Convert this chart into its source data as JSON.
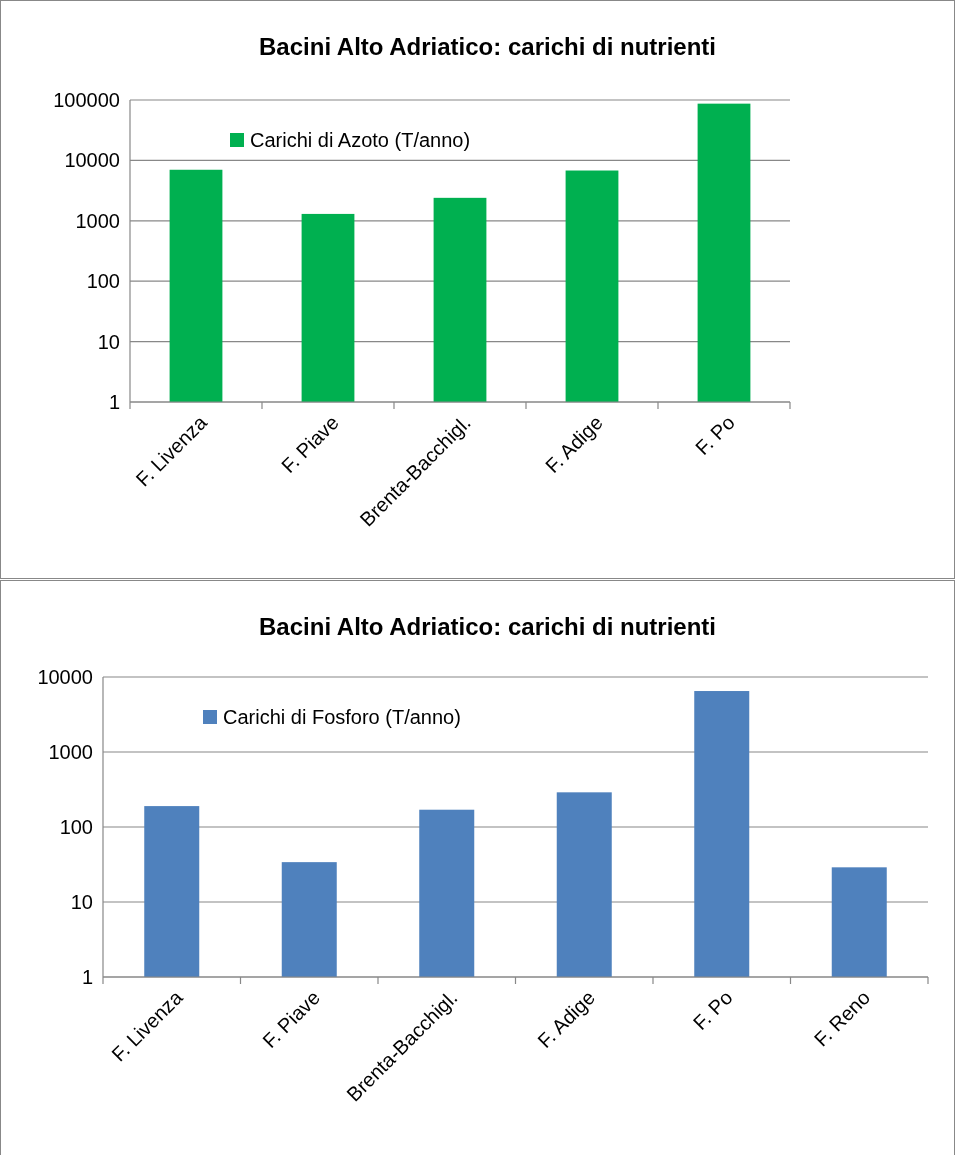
{
  "chart_data": [
    {
      "type": "bar",
      "title": "Bacini Alto Adriatico: carichi di nutrienti",
      "categories": [
        "F. Livenza",
        "F. Piave",
        "Brenta-Bacchigl.",
        "F. Adige",
        "F. Po"
      ],
      "series": [
        {
          "name": "Carichi di Azoto (T/anno)",
          "color": "#00b050",
          "values": [
            7000,
            1300,
            2400,
            6800,
            87000
          ]
        }
      ],
      "ylim": [
        1,
        100000
      ],
      "yticks": [
        1,
        10,
        100,
        1000,
        10000,
        100000
      ],
      "log": true,
      "grid": "y",
      "legend": "top left"
    },
    {
      "type": "bar",
      "title": "Bacini Alto Adriatico: carichi di nutrienti",
      "categories": [
        "F. Livenza",
        "F. Piave",
        "Brenta-Bacchigl.",
        "F. Adige",
        "F. Po",
        "F. Reno"
      ],
      "series": [
        {
          "name": "Carichi di Fosforo (T/anno)",
          "color": "#4f81bd",
          "values": [
            190,
            34,
            170,
            290,
            6500,
            29
          ]
        }
      ],
      "ylim": [
        1,
        10000
      ],
      "yticks": [
        1,
        10,
        100,
        1000,
        10000
      ],
      "log": true,
      "grid": "y",
      "legend": "top left"
    }
  ]
}
